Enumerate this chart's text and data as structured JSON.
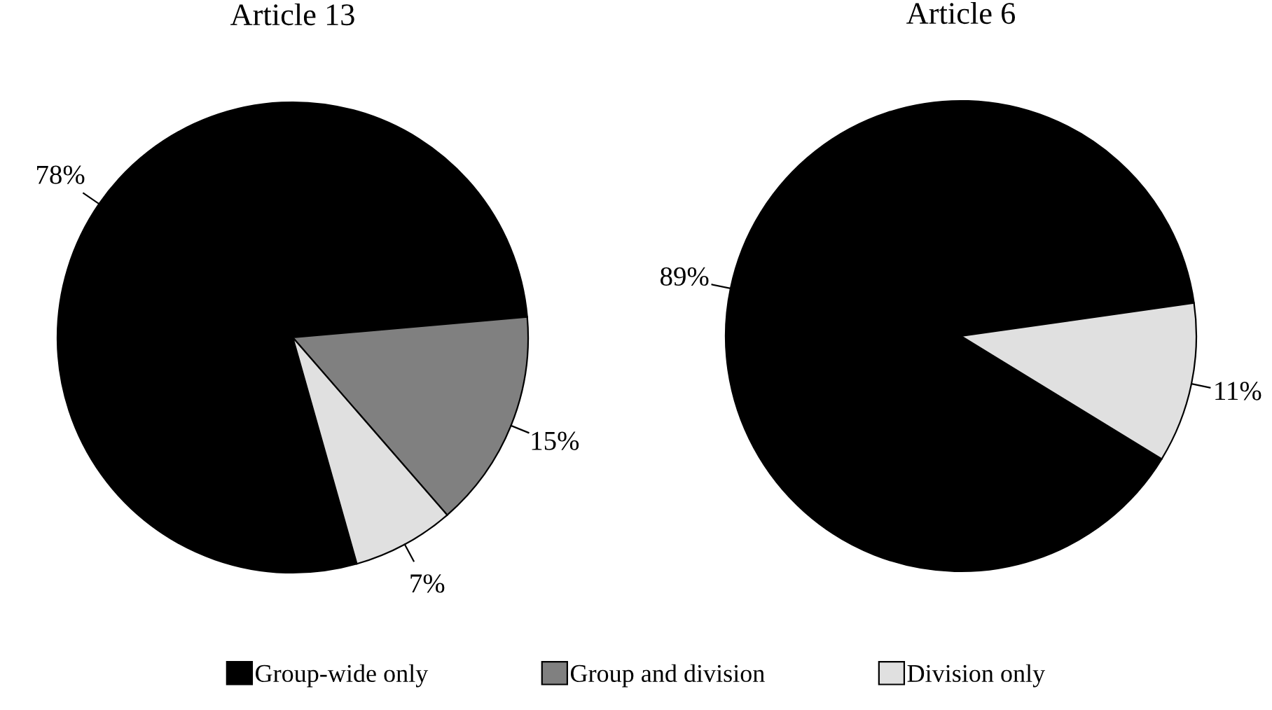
{
  "chart_data": [
    {
      "type": "pie",
      "title": "Article 13",
      "categories": [
        "Group-wide only",
        "Group and division",
        "Division only"
      ],
      "values": [
        78,
        15,
        7
      ],
      "colors": [
        "#000000",
        "#808080",
        "#e0e0e0"
      ],
      "data_labels": true,
      "value_labels": [
        "78%",
        "15%",
        "7%"
      ],
      "legend": "bottom"
    },
    {
      "type": "pie",
      "title": "Article 6",
      "categories": [
        null,
        null
      ],
      "values": [
        89,
        11
      ],
      "colors": [
        "#000000",
        "#e0e0e0"
      ],
      "data_labels": true,
      "value_labels": [
        "89%",
        "11%"
      ]
    }
  ]
}
